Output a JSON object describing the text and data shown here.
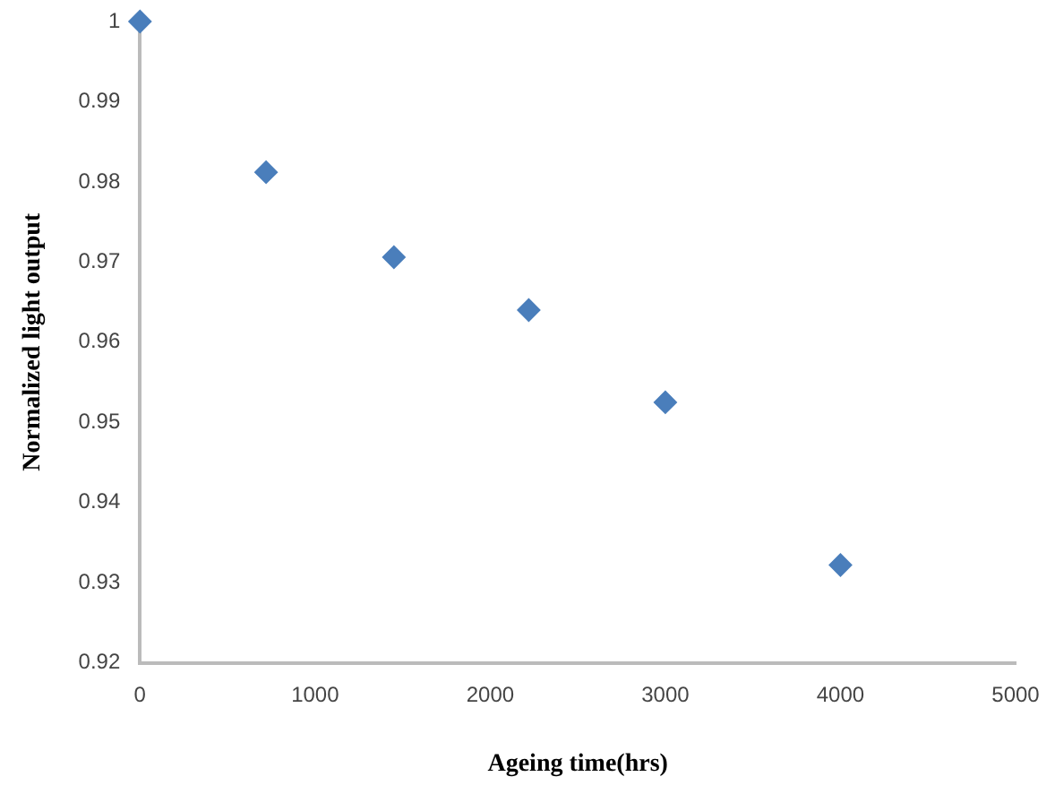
{
  "chart_data": {
    "type": "scatter",
    "xlabel": "Ageing time(hrs)",
    "ylabel": "Normalized light output",
    "x": [
      0,
      720,
      1450,
      2220,
      3000,
      4000
    ],
    "values": [
      1,
      0.9812,
      0.9706,
      0.964,
      0.9525,
      0.9322
    ],
    "color": "#4a7ebb",
    "marker": "diamond",
    "xlim": [
      0,
      5000
    ],
    "xticks": [
      0,
      1000,
      2000,
      3000,
      4000,
      5000
    ],
    "ylim": [
      0.92,
      1
    ],
    "yticks": [
      0.92,
      0.93,
      0.94,
      0.95,
      0.96,
      0.97,
      0.98,
      0.99,
      1
    ],
    "grid": false,
    "legend": false
  }
}
